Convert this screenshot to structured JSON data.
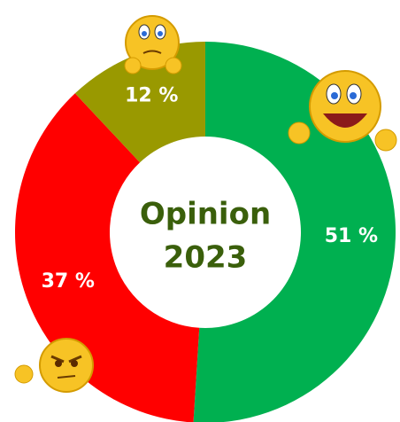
{
  "chart_data": {
    "type": "donut",
    "title": [
      "Opinion",
      "2023"
    ],
    "categories": [
      null,
      null,
      null
    ],
    "values": [
      51,
      37,
      12
    ],
    "value_labels": [
      "51 %",
      "37 %",
      "12 %"
    ],
    "colors": [
      "#00b050",
      "#ff0000",
      "#999900"
    ]
  }
}
